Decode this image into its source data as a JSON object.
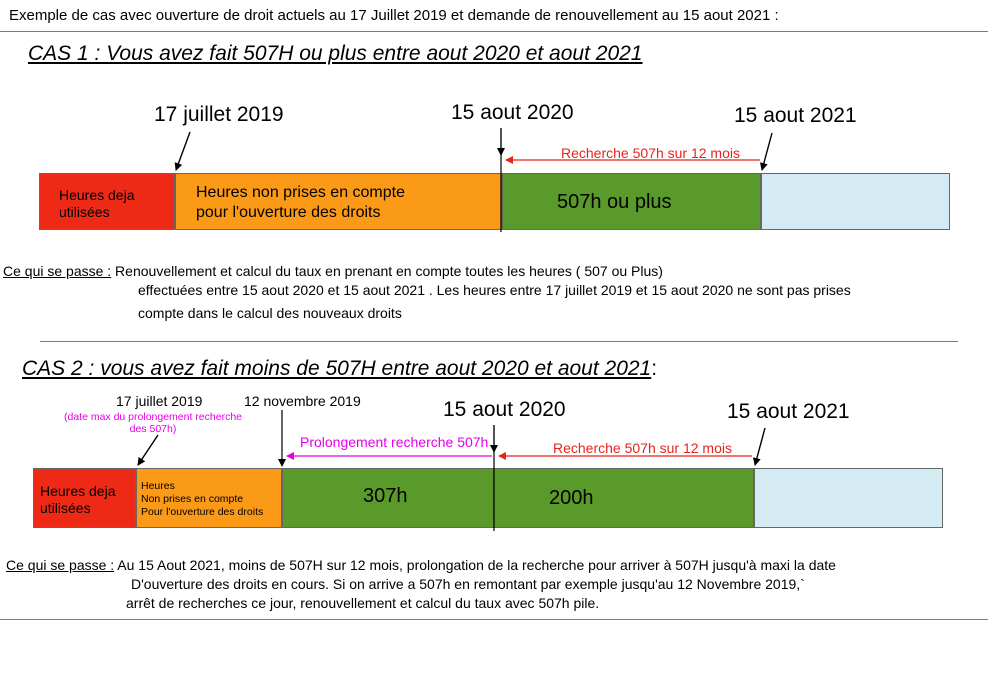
{
  "header": {
    "text": "Exemple de cas avec ouverture de droit actuels au 17 Juillet 2019 et  demande de renouvellement au 15 aout 2021  :"
  },
  "case1": {
    "title_underlined": "CAS 1 : Vous avez fait 507H ou plus entre aout 2020 et aout 2021",
    "dates": {
      "d1": "17 juillet 2019",
      "d2": "15 aout 2020",
      "d3": "15 aout 2021"
    },
    "search_label": "Recherche 507h sur 12 mois",
    "segments": {
      "used_line1": "Heures deja",
      "used_line2": "utilisées",
      "notcounted_line1": "Heures non prises en compte",
      "notcounted_line2": "pour l'ouverture des droits",
      "counted": "507h ou plus"
    },
    "explain": {
      "label": "Ce qui se passe :",
      "line1": " Renouvellement et calcul du taux en prenant en compte toutes les heures ( 507 ou Plus)",
      "line2": "effectuées entre 15 aout 2020 et 15 aout 2021 . Les heures entre 17 juillet 2019 et 15 aout 2020 ne sont pas prises",
      "line3": "compte dans le calcul des nouveaux droits"
    }
  },
  "case2": {
    "title_underlined": "CAS 2 :  vous avez fait moins de 507H entre aout 2020 et aout 2021",
    "title_tail": ":",
    "dates": {
      "d1": "17 juillet 2019",
      "d1_note": "(date max du prolongement recherche des 507h)",
      "d_nov": "12 novembre 2019",
      "d2": "15 aout 2020",
      "d3": "15 aout 2021"
    },
    "prolong_label": "Prolongement recherche 507h",
    "search_label": "Recherche 507h sur 12 mois",
    "segments": {
      "used_line1": "Heures deja",
      "used_line2": "utilisées",
      "nc_line1": "Heures",
      "nc_line2": "Non prises en compte",
      "nc_line3": "Pour l'ouverture des droits",
      "h307": "307h",
      "h200": "200h"
    },
    "explain": {
      "label": "Ce qui se passe :",
      "line1": "  Au 15 Aout 2021, moins de 507H sur 12 mois, prolongation de la recherche pour arriver à 507H jusqu'à maxi la date",
      "line2": "D'ouverture des droits en cours. Si on arrive a 507h en remontant  par exemple jusqu'au 12 Novembre 2019,`",
      "line3": "arrêt de recherches ce jour, renouvellement  et calcul du taux avec 507h pile."
    }
  },
  "colors": {
    "red": "#ee2a16",
    "orange": "#fb9a17",
    "green": "#5a9a2a",
    "lightblue": "#d4ebf4",
    "search_red": "#e8231a",
    "magenta": "#e600e6"
  }
}
